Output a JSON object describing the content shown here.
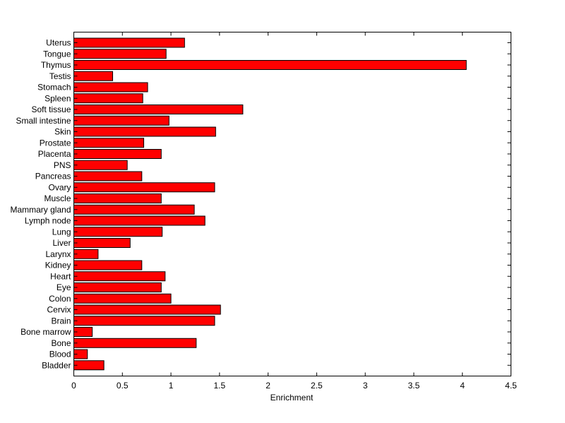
{
  "chart_data": {
    "type": "bar",
    "orientation": "horizontal",
    "title": "",
    "xlabel": "Enrichment",
    "ylabel": "",
    "xlim": [
      0,
      4.5
    ],
    "xticks": [
      "0",
      "0.5",
      "1",
      "1.5",
      "2",
      "2.5",
      "3",
      "3.5",
      "4",
      "4.5"
    ],
    "grid": false,
    "bar_color": "#ff0000",
    "categories": [
      "Uterus",
      "Tongue",
      "Thymus",
      "Testis",
      "Stomach",
      "Spleen",
      "Soft tissue",
      "Small intestine",
      "Skin",
      "Prostate",
      "Placenta",
      "PNS",
      "Pancreas",
      "Ovary",
      "Muscle",
      "Mammary gland",
      "Lymph node",
      "Lung",
      "Liver",
      "Larynx",
      "Kidney",
      "Heart",
      "Eye",
      "Colon",
      "Cervix",
      "Brain",
      "Bone marrow",
      "Bone",
      "Blood",
      "Bladder"
    ],
    "values": [
      1.14,
      0.95,
      4.04,
      0.4,
      0.76,
      0.71,
      1.74,
      0.98,
      1.46,
      0.72,
      0.9,
      0.55,
      0.7,
      1.45,
      0.9,
      1.24,
      1.35,
      0.91,
      0.58,
      0.25,
      0.7,
      0.94,
      0.9,
      1.0,
      1.51,
      1.45,
      0.19,
      1.26,
      0.14,
      0.31
    ]
  }
}
